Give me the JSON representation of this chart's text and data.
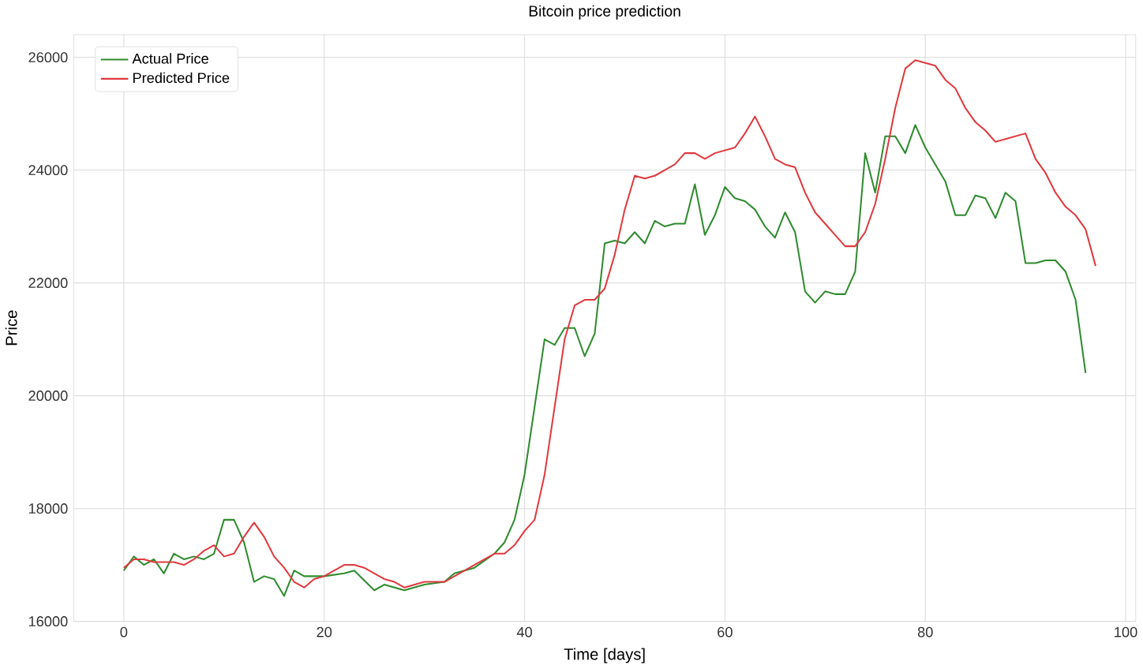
{
  "chart_data": {
    "type": "line",
    "title": "Bitcoin price prediction",
    "xlabel": "Time [days]",
    "ylabel": "Price",
    "xlim": [
      -5,
      101
    ],
    "ylim": [
      16000,
      26400
    ],
    "xticks": [
      0,
      20,
      40,
      60,
      80,
      100
    ],
    "yticks": [
      16000,
      18000,
      20000,
      22000,
      24000,
      26000
    ],
    "grid": true,
    "legend": "top left",
    "series": [
      {
        "name": "Actual Price",
        "color": "#2e8b2e",
        "x": [
          0,
          1,
          2,
          3,
          4,
          5,
          6,
          7,
          8,
          9,
          10,
          11,
          12,
          13,
          14,
          15,
          16,
          17,
          18,
          19,
          20,
          22,
          23,
          25,
          26,
          28,
          30,
          32,
          33,
          35,
          37,
          38,
          39,
          40,
          41,
          42,
          43,
          44,
          45,
          46,
          47,
          48,
          49,
          50,
          51,
          52,
          53,
          54,
          55,
          56,
          57,
          58,
          59,
          60,
          61,
          62,
          63,
          64,
          65,
          66,
          67,
          68,
          69,
          70,
          71,
          72,
          73,
          74,
          75,
          76,
          77,
          78,
          79,
          80,
          81,
          82,
          83,
          84,
          85,
          86,
          87,
          88,
          89,
          90,
          91,
          92,
          93,
          94,
          95,
          96
        ],
        "values": [
          16900,
          17150,
          17000,
          17100,
          16850,
          17200,
          17100,
          17150,
          17100,
          17200,
          17800,
          17800,
          17400,
          16700,
          16800,
          16750,
          16450,
          16900,
          16800,
          16800,
          16800,
          16850,
          16900,
          16550,
          16650,
          16550,
          16650,
          16700,
          16850,
          16950,
          17200,
          17400,
          17800,
          18600,
          19800,
          21000,
          20900,
          21200,
          21200,
          20700,
          21100,
          22700,
          22750,
          22700,
          22900,
          22700,
          23100,
          23000,
          23050,
          23050,
          23750,
          22850,
          23200,
          23700,
          23500,
          23450,
          23300,
          23000,
          22800,
          23250,
          22900,
          21850,
          21650,
          21850,
          21800,
          21800,
          22200,
          24300,
          23600,
          24600,
          24600,
          24300,
          24800,
          24400,
          24100,
          23800,
          23200,
          23200,
          23550,
          23500,
          23150,
          23600,
          23450,
          22350,
          22350,
          22400,
          22400,
          22200,
          21700,
          20400
        ]
      },
      {
        "name": "Predicted Price",
        "color": "#e0393e",
        "x": [
          0,
          1,
          2,
          3,
          4,
          5,
          6,
          7,
          8,
          9,
          10,
          11,
          12,
          13,
          14,
          15,
          16,
          17,
          18,
          19,
          20,
          21,
          22,
          23,
          24,
          25,
          26,
          27,
          28,
          30,
          32,
          34,
          36,
          37,
          38,
          39,
          40,
          41,
          42,
          43,
          44,
          45,
          46,
          47,
          48,
          49,
          50,
          51,
          52,
          53,
          54,
          55,
          56,
          57,
          58,
          59,
          60,
          61,
          62,
          63,
          64,
          65,
          66,
          67,
          68,
          69,
          70,
          71,
          72,
          73,
          74,
          75,
          76,
          77,
          78,
          79,
          80,
          81,
          82,
          83,
          84,
          85,
          86,
          87,
          88,
          89,
          90,
          91,
          92,
          93,
          94,
          95,
          96,
          97
        ],
        "values": [
          16950,
          17100,
          17100,
          17050,
          17050,
          17050,
          17000,
          17100,
          17250,
          17350,
          17150,
          17200,
          17500,
          17750,
          17500,
          17150,
          16950,
          16700,
          16600,
          16750,
          16800,
          16900,
          17000,
          17000,
          16950,
          16850,
          16750,
          16700,
          16600,
          16700,
          16700,
          16900,
          17100,
          17200,
          17200,
          17350,
          17600,
          17800,
          18600,
          19800,
          21000,
          21600,
          21700,
          21700,
          21900,
          22500,
          23300,
          23900,
          23850,
          23900,
          24000,
          24100,
          24300,
          24300,
          24200,
          24300,
          24350,
          24400,
          24650,
          24950,
          24600,
          24200,
          24100,
          24050,
          23600,
          23250,
          23050,
          22850,
          22650,
          22650,
          22900,
          23400,
          24200,
          25100,
          25800,
          25950,
          25900,
          25850,
          25600,
          25450,
          25100,
          24850,
          24700,
          24500,
          24550,
          24600,
          24650,
          24200,
          23950,
          23600,
          23350,
          23200,
          22950,
          22300
        ]
      }
    ]
  }
}
